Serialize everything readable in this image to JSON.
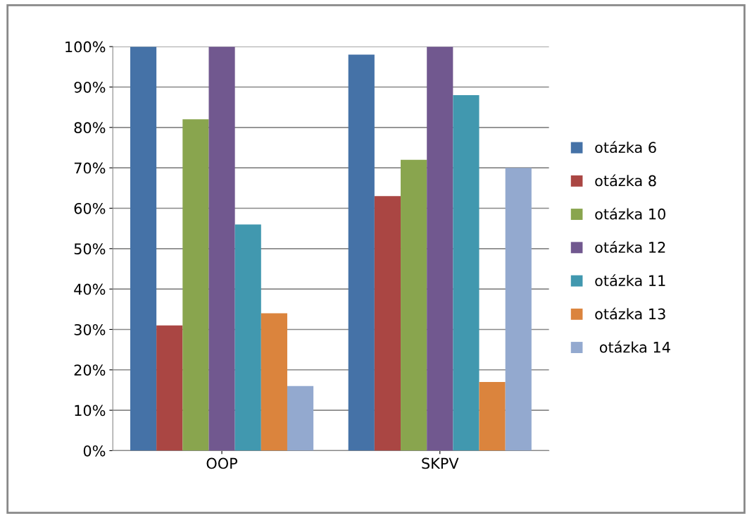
{
  "chart_data": {
    "type": "bar",
    "categories": [
      "OOP",
      "SKPV"
    ],
    "series": [
      {
        "name": "otázka 6",
        "color": "#4572a7",
        "values": [
          100,
          98
        ]
      },
      {
        "name": "otázka 8",
        "color": "#aa4643",
        "values": [
          31,
          63
        ]
      },
      {
        "name": "otázka 10",
        "color": "#89a54e",
        "values": [
          82,
          72
        ]
      },
      {
        "name": "otázka 12",
        "color": "#71588f",
        "values": [
          100,
          100
        ]
      },
      {
        "name": "otázka 11",
        "color": "#4198af",
        "values": [
          56,
          88
        ]
      },
      {
        "name": "otázka 13",
        "color": "#db843d",
        "values": [
          34,
          17
        ]
      },
      {
        "name": " otázka 14",
        "color": "#93a9cf",
        "values": [
          16,
          70
        ]
      }
    ],
    "ylim": [
      0,
      100
    ],
    "yticks": [
      {
        "value": 0,
        "label": "0%"
      },
      {
        "value": 10,
        "label": "10%"
      },
      {
        "value": 20,
        "label": "20%"
      },
      {
        "value": 30,
        "label": "30%"
      },
      {
        "value": 40,
        "label": "40%"
      },
      {
        "value": 50,
        "label": "50%"
      },
      {
        "value": 60,
        "label": "60%"
      },
      {
        "value": 70,
        "label": "70%"
      },
      {
        "value": 80,
        "label": "80%"
      },
      {
        "value": 90,
        "label": "90%"
      },
      {
        "value": 100,
        "label": "100%"
      }
    ],
    "grid": "y",
    "legend": "right"
  }
}
